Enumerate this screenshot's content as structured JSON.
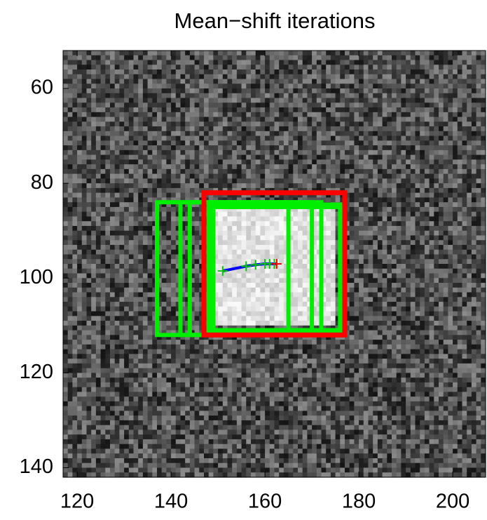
{
  "chart_data": {
    "type": "image-tracking",
    "title": "Mean−shift iterations",
    "xlim": [
      117,
      207
    ],
    "ylim": [
      142,
      52
    ],
    "xticks": [
      120,
      140,
      160,
      180,
      200
    ],
    "yticks": [
      60,
      80,
      100,
      120,
      140
    ],
    "windows": {
      "color": "#00ee00",
      "x": [
        137,
        142,
        144,
        148,
        148.5,
        149,
        149
      ],
      "y": [
        84,
        84,
        84,
        84.5,
        85,
        85,
        85
      ],
      "width": [
        28,
        28,
        28,
        28,
        28,
        28,
        28
      ],
      "height": [
        28,
        28,
        28,
        27,
        26,
        26,
        26
      ]
    },
    "final_window": {
      "color": "#ff0000",
      "x": 147,
      "y": 82,
      "width": 30,
      "height": 30
    },
    "trajectory": {
      "color": "#0000ff",
      "marker_color": "#00cc00",
      "x": [
        151,
        156,
        158,
        160,
        161,
        162,
        162.5
      ],
      "y": [
        98.5,
        97.5,
        97.2,
        97,
        97,
        97,
        97
      ]
    },
    "final_center": {
      "color": "#ff0000",
      "x": 162.5,
      "y": 97
    }
  }
}
